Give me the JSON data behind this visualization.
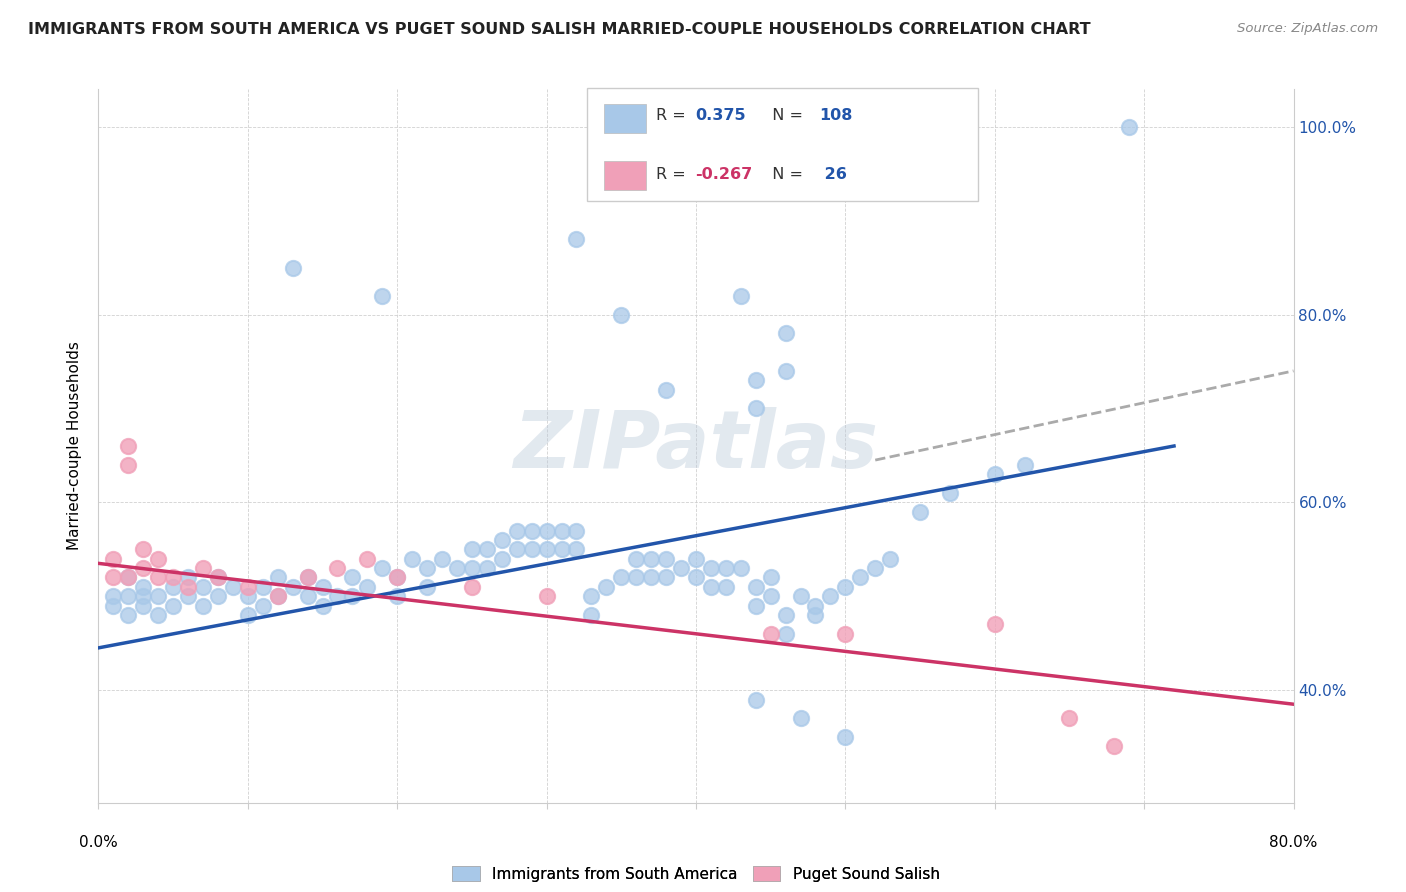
{
  "title": "IMMIGRANTS FROM SOUTH AMERICA VS PUGET SOUND SALISH MARRIED-COUPLE HOUSEHOLDS CORRELATION CHART",
  "source": "Source: ZipAtlas.com",
  "ylabel": "Married-couple Households",
  "blue_color": "#A8C8E8",
  "pink_color": "#F0A0B8",
  "blue_line_color": "#2255AA",
  "pink_line_color": "#CC3366",
  "dashed_line_color": "#AAAAAA",
  "legend_label1": "Immigrants from South America",
  "legend_label2": "Puget Sound Salish",
  "xlim": [
    0.0,
    0.8
  ],
  "ylim": [
    0.28,
    1.04
  ],
  "yticks": [
    0.4,
    0.6,
    0.8,
    1.0
  ],
  "ytick_labels": [
    "40.0%",
    "60.0%",
    "80.0%",
    "100.0%"
  ],
  "xticks": [
    0.0,
    0.1,
    0.2,
    0.3,
    0.4,
    0.5,
    0.6,
    0.7,
    0.8
  ],
  "blue_line_x": [
    0.0,
    0.72
  ],
  "blue_line_y": [
    0.445,
    0.66
  ],
  "dashed_line_x": [
    0.52,
    0.8
  ],
  "dashed_line_y": [
    0.645,
    0.74
  ],
  "pink_line_x": [
    0.0,
    0.8
  ],
  "pink_line_y": [
    0.535,
    0.385
  ],
  "blue_x": [
    0.69,
    0.32,
    0.43,
    0.46,
    0.35,
    0.44,
    0.38,
    0.46,
    0.44,
    0.13,
    0.19,
    0.01,
    0.01,
    0.02,
    0.02,
    0.02,
    0.03,
    0.03,
    0.03,
    0.04,
    0.04,
    0.05,
    0.05,
    0.06,
    0.06,
    0.07,
    0.07,
    0.08,
    0.08,
    0.09,
    0.1,
    0.1,
    0.11,
    0.11,
    0.12,
    0.12,
    0.13,
    0.14,
    0.14,
    0.15,
    0.15,
    0.16,
    0.17,
    0.17,
    0.18,
    0.19,
    0.2,
    0.2,
    0.21,
    0.22,
    0.22,
    0.23,
    0.24,
    0.25,
    0.25,
    0.26,
    0.26,
    0.27,
    0.27,
    0.28,
    0.28,
    0.29,
    0.29,
    0.3,
    0.3,
    0.31,
    0.31,
    0.32,
    0.32,
    0.33,
    0.33,
    0.34,
    0.35,
    0.36,
    0.36,
    0.37,
    0.37,
    0.38,
    0.38,
    0.39,
    0.4,
    0.4,
    0.41,
    0.41,
    0.42,
    0.42,
    0.43,
    0.44,
    0.44,
    0.45,
    0.45,
    0.46,
    0.46,
    0.47,
    0.48,
    0.48,
    0.49,
    0.5,
    0.51,
    0.52,
    0.53,
    0.55,
    0.57,
    0.6,
    0.62,
    0.44,
    0.47,
    0.5
  ],
  "blue_y": [
    1.0,
    0.88,
    0.82,
    0.78,
    0.8,
    0.73,
    0.72,
    0.74,
    0.7,
    0.85,
    0.82,
    0.5,
    0.49,
    0.52,
    0.5,
    0.48,
    0.51,
    0.5,
    0.49,
    0.5,
    0.48,
    0.51,
    0.49,
    0.52,
    0.5,
    0.51,
    0.49,
    0.52,
    0.5,
    0.51,
    0.5,
    0.48,
    0.51,
    0.49,
    0.52,
    0.5,
    0.51,
    0.52,
    0.5,
    0.51,
    0.49,
    0.5,
    0.52,
    0.5,
    0.51,
    0.53,
    0.52,
    0.5,
    0.54,
    0.53,
    0.51,
    0.54,
    0.53,
    0.55,
    0.53,
    0.55,
    0.53,
    0.56,
    0.54,
    0.57,
    0.55,
    0.57,
    0.55,
    0.57,
    0.55,
    0.57,
    0.55,
    0.57,
    0.55,
    0.5,
    0.48,
    0.51,
    0.52,
    0.54,
    0.52,
    0.54,
    0.52,
    0.54,
    0.52,
    0.53,
    0.54,
    0.52,
    0.53,
    0.51,
    0.53,
    0.51,
    0.53,
    0.51,
    0.49,
    0.52,
    0.5,
    0.48,
    0.46,
    0.5,
    0.48,
    0.49,
    0.5,
    0.51,
    0.52,
    0.53,
    0.54,
    0.59,
    0.61,
    0.63,
    0.64,
    0.39,
    0.37,
    0.35
  ],
  "pink_x": [
    0.01,
    0.01,
    0.02,
    0.02,
    0.02,
    0.03,
    0.03,
    0.04,
    0.04,
    0.05,
    0.06,
    0.07,
    0.08,
    0.1,
    0.12,
    0.14,
    0.16,
    0.18,
    0.2,
    0.25,
    0.3,
    0.45,
    0.5,
    0.6,
    0.65,
    0.68
  ],
  "pink_y": [
    0.54,
    0.52,
    0.66,
    0.64,
    0.52,
    0.55,
    0.53,
    0.54,
    0.52,
    0.52,
    0.51,
    0.53,
    0.52,
    0.51,
    0.5,
    0.52,
    0.53,
    0.54,
    0.52,
    0.51,
    0.5,
    0.46,
    0.46,
    0.47,
    0.37,
    0.34
  ]
}
